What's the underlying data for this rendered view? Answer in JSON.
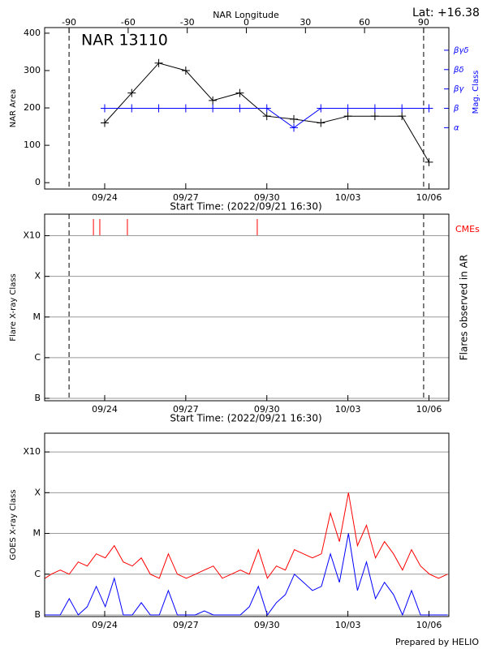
{
  "chart_data": [
    {
      "type": "line",
      "annotations": [
        "Lat: +16.38",
        "NAR 13110"
      ],
      "x2_label": "NAR Longitude",
      "ylabel": "NAR Area",
      "y2label": "Mag. Class",
      "xlabel": "Start Time: (2022/09/21 16:30)",
      "x": [
        "09/24",
        "09/25",
        "09/26",
        "09/27",
        "09/28",
        "09/29",
        "09/30",
        "10/01",
        "10/02",
        "10/03",
        "10/04",
        "10/05",
        "10/06"
      ],
      "xlim": [
        "09/21 18:40",
        "10/06 17:40"
      ],
      "xticks": [
        "09/24",
        "09/27",
        "09/30",
        "10/03",
        "10/06"
      ],
      "x2lim": [
        -102.4,
        102.8
      ],
      "x2ticks": [
        -90,
        -60,
        -30,
        0,
        30,
        60,
        90
      ],
      "limb_lines": [
        -90,
        90
      ],
      "ylim": [
        -17,
        415
      ],
      "yticks": [
        0,
        100,
        200,
        300,
        400
      ],
      "y2lim": [
        -2.17,
        6.17
      ],
      "y2ticks": [
        {
          "value": 1,
          "label": "α"
        },
        {
          "value": 2,
          "label": "β"
        },
        {
          "value": 3,
          "label": "βγ"
        },
        {
          "value": 4,
          "label": "βδ"
        },
        {
          "value": 5,
          "label": "βγδ"
        }
      ],
      "y2color": "#0000ff",
      "grid": false,
      "series": [
        {
          "color": "#000000",
          "values": [
            160,
            240,
            320,
            300,
            220,
            240,
            178,
            170,
            160,
            178,
            178,
            178,
            55
          ]
        },
        {
          "color": "#0000ff",
          "axis": "y2",
          "values": [
            2,
            2,
            2,
            2,
            2,
            2,
            2,
            1,
            2,
            2,
            2,
            2,
            2
          ]
        }
      ]
    },
    {
      "type": "event",
      "ylabel": "Flare X-ray Class",
      "y2label": "Flares observed in AR",
      "xlabel": "Start Time: (2022/09/21 16:30)",
      "events_label": "CMEs",
      "events_color": "#ff0000",
      "cme_times": [
        "09/23 14:00",
        "09/23 19:40",
        "09/24 20:10",
        "09/29 15:30"
      ],
      "xlim": [
        "09/21 18:40",
        "10/06 17:40"
      ],
      "xticks": [
        "09/24",
        "09/27",
        "09/30",
        "10/03",
        "10/06"
      ],
      "x2lim": [
        -102.4,
        102.8
      ],
      "limb_lines": [
        -90,
        90
      ],
      "ylim": [
        -7.06,
        -2.47
      ],
      "yticks": [
        {
          "value": -7,
          "label": "B"
        },
        {
          "value": -6,
          "label": "C"
        },
        {
          "value": -5,
          "label": "M"
        },
        {
          "value": -4,
          "label": "X"
        },
        {
          "value": -3,
          "label": "X10"
        }
      ],
      "grid": true,
      "series": []
    },
    {
      "type": "line",
      "ylabel": "GOES X-ray Class",
      "xlim": [
        "09/21 18:40",
        "10/06 17:40"
      ],
      "xticks": [
        "09/24",
        "09/27",
        "09/30",
        "10/03",
        "10/06"
      ],
      "ylim": [
        -7.04,
        -2.54
      ],
      "yticks": [
        {
          "value": -7,
          "label": "B"
        },
        {
          "value": -6,
          "label": "C"
        },
        {
          "value": -5,
          "label": "M"
        },
        {
          "value": -4,
          "label": "X"
        },
        {
          "value": -3,
          "label": "X10"
        }
      ],
      "grid": true,
      "x": [
        "09/21 19:00",
        "09/22 00:30",
        "09/22 08:30",
        "09/22 16:30",
        "09/23 00:30",
        "09/23 08:30",
        "09/23 16:30",
        "09/24 00:30",
        "09/24 08:30",
        "09/24 16:30",
        "09/25 00:30",
        "09/25 08:30",
        "09/25 16:30",
        "09/26 00:30",
        "09/26 08:30",
        "09/26 16:30",
        "09/27 00:30",
        "09/27 08:30",
        "09/27 16:30",
        "09/28 00:30",
        "09/28 08:30",
        "09/28 16:30",
        "09/29 00:30",
        "09/29 08:30",
        "09/29 16:30",
        "09/30 00:30",
        "09/30 08:30",
        "09/30 16:30",
        "10/01 00:30",
        "10/01 08:30",
        "10/01 16:30",
        "10/02 00:30",
        "10/02 08:30",
        "10/02 16:30",
        "10/03 00:30",
        "10/03 08:30",
        "10/03 16:30",
        "10/04 00:30",
        "10/04 08:30",
        "10/04 16:30",
        "10/05 00:30",
        "10/05 08:30",
        "10/05 16:30",
        "10/06 00:30",
        "10/06 08:30",
        "10/06 16:30"
      ],
      "series": [
        {
          "color": "#ff0000",
          "values": [
            -6.1,
            -6.0,
            -5.9,
            -6.0,
            -5.7,
            -5.8,
            -5.5,
            -5.6,
            -5.3,
            -5.7,
            -5.8,
            -5.6,
            -6.0,
            -6.1,
            -5.5,
            -6.0,
            -6.1,
            -6.0,
            -5.9,
            -5.8,
            -6.1,
            -6.0,
            -5.9,
            -6.0,
            -5.4,
            -6.1,
            -5.8,
            -5.9,
            -5.4,
            -5.5,
            -5.6,
            -5.5,
            -4.5,
            -5.2,
            -4.0,
            -5.3,
            -4.8,
            -5.6,
            -5.2,
            -5.5,
            -5.9,
            -5.4,
            -5.8,
            -6.0,
            -6.1,
            -6.0
          ]
        },
        {
          "color": "#0000ff",
          "values": [
            -7.0,
            -7.0,
            -7.0,
            -6.6,
            -7.0,
            -6.8,
            -6.3,
            -6.8,
            -6.1,
            -7.0,
            -7.0,
            -6.7,
            -7.0,
            -7.0,
            -6.4,
            -7.0,
            -7.0,
            -7.0,
            -6.9,
            -7.0,
            -7.0,
            -7.0,
            -7.0,
            -6.8,
            -6.3,
            -7.0,
            -6.7,
            -6.5,
            -6.0,
            -6.2,
            -6.4,
            -6.3,
            -5.5,
            -6.2,
            -5.0,
            -6.4,
            -5.7,
            -6.6,
            -6.2,
            -6.5,
            -7.0,
            -6.4,
            -7.0,
            -7.0,
            -7.0,
            -7.0
          ]
        }
      ]
    }
  ],
  "footer": "Prepared by HELIO"
}
